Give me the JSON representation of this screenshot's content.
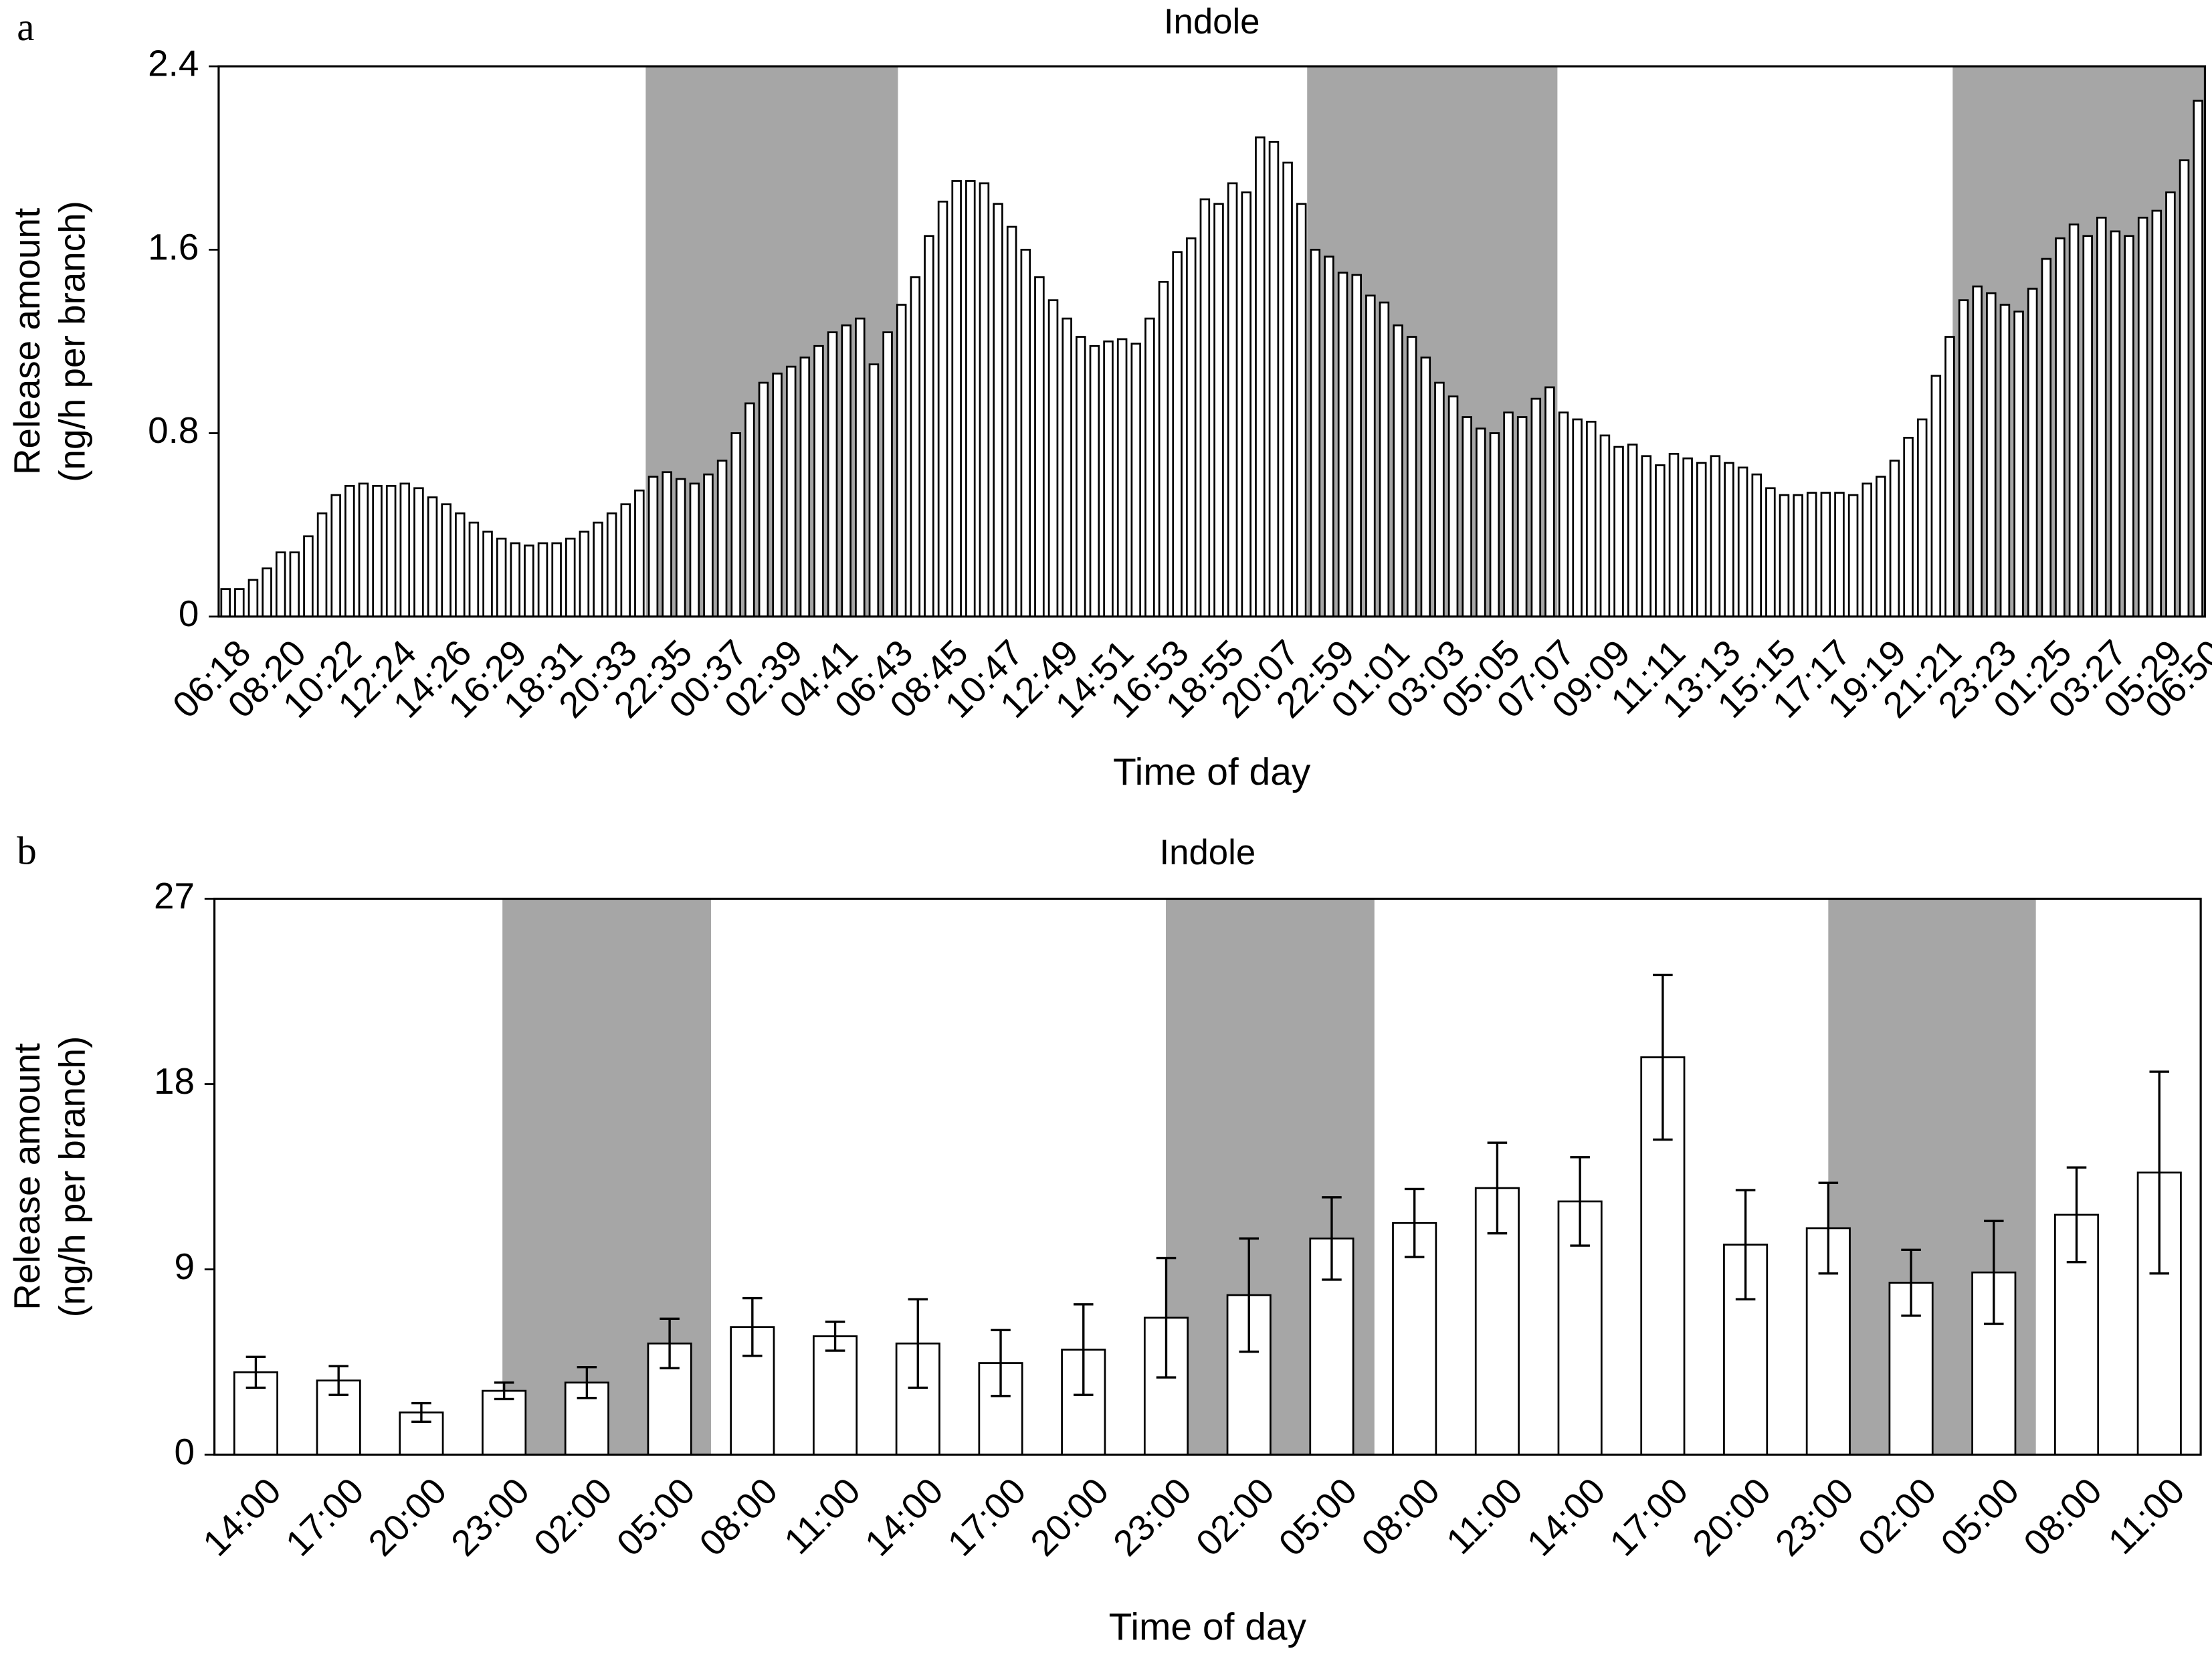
{
  "chart_data": [
    {
      "type": "bar",
      "panel": "a",
      "title": "Indole",
      "y_label": [
        "Release amount",
        "(ng/h per branch)"
      ],
      "x_label": "Time of day",
      "categories": [
        "06:18",
        null,
        null,
        null,
        "08:20",
        null,
        null,
        null,
        "10:22",
        null,
        null,
        null,
        "12:24",
        null,
        null,
        null,
        "14:26",
        null,
        null,
        null,
        "16:29",
        null,
        null,
        null,
        "18:31",
        null,
        null,
        null,
        "20:33",
        null,
        null,
        null,
        "22:35",
        null,
        null,
        null,
        "00:37",
        null,
        null,
        null,
        "02:39",
        null,
        null,
        null,
        "04:41",
        null,
        null,
        null,
        "06:43",
        null,
        null,
        null,
        "08:45",
        null,
        null,
        null,
        "10:47",
        null,
        null,
        null,
        "12:49",
        null,
        null,
        null,
        "14:51",
        null,
        null,
        null,
        "16:53",
        null,
        null,
        null,
        "18:55",
        null,
        null,
        null,
        "20:07",
        null,
        null,
        null,
        "22:59",
        null,
        null,
        null,
        "01:01",
        null,
        null,
        null,
        "03:03",
        null,
        null,
        null,
        "05:05",
        null,
        null,
        null,
        "07:07",
        null,
        null,
        null,
        "09:09",
        null,
        null,
        null,
        "11:11",
        null,
        null,
        null,
        "13:13",
        null,
        null,
        null,
        "15:15",
        null,
        null,
        null,
        "17:17",
        null,
        null,
        null,
        "19:19",
        null,
        null,
        null,
        "21:21",
        null,
        null,
        null,
        "23:23",
        null,
        null,
        null,
        "01:25",
        null,
        null,
        null,
        "03:27",
        null,
        null,
        null,
        "05:29",
        null,
        null,
        "06:50"
      ],
      "values": [
        0.12,
        0.12,
        0.16,
        0.21,
        0.28,
        0.28,
        0.35,
        0.45,
        0.53,
        0.57,
        0.58,
        0.57,
        0.57,
        0.58,
        0.56,
        0.52,
        0.49,
        0.45,
        0.41,
        0.37,
        0.34,
        0.32,
        0.31,
        0.32,
        0.32,
        0.34,
        0.37,
        0.41,
        0.45,
        0.49,
        0.55,
        0.61,
        0.63,
        0.6,
        0.58,
        0.62,
        0.68,
        0.8,
        0.93,
        1.02,
        1.06,
        1.09,
        1.13,
        1.18,
        1.24,
        1.27,
        1.3,
        1.1,
        1.24,
        1.36,
        1.48,
        1.66,
        1.81,
        1.9,
        1.9,
        1.89,
        1.8,
        1.7,
        1.6,
        1.48,
        1.38,
        1.3,
        1.22,
        1.18,
        1.2,
        1.21,
        1.19,
        1.3,
        1.46,
        1.59,
        1.65,
        1.82,
        1.8,
        1.89,
        1.85,
        2.09,
        2.07,
        1.98,
        1.8,
        1.6,
        1.57,
        1.5,
        1.49,
        1.4,
        1.37,
        1.27,
        1.22,
        1.13,
        1.02,
        0.96,
        0.87,
        0.82,
        0.8,
        0.89,
        0.87,
        0.95,
        1.0,
        0.89,
        0.86,
        0.85,
        0.79,
        0.74,
        0.75,
        0.7,
        0.66,
        0.71,
        0.69,
        0.67,
        0.7,
        0.67,
        0.65,
        0.62,
        0.56,
        0.53,
        0.53,
        0.54,
        0.54,
        0.54,
        0.53,
        0.58,
        0.61,
        0.68,
        0.78,
        0.86,
        1.05,
        1.22,
        1.38,
        1.44,
        1.41,
        1.36,
        1.33,
        1.43,
        1.56,
        1.65,
        1.71,
        1.66,
        1.74,
        1.68,
        1.66,
        1.74,
        1.77,
        1.85,
        1.99,
        2.25
      ],
      "color": "#ffffff",
      "ylim": [
        0,
        2.4
      ],
      "yticks": [
        0,
        0.8,
        1.6,
        2.4
      ]
    },
    {
      "type": "bar",
      "panel": "b",
      "title": "Indole",
      "y_label": [
        "Release amount",
        "(ng/h per branch)"
      ],
      "x_label": "Time of day",
      "categories": [
        "14:00",
        "17:00",
        "20:00",
        "23:00",
        "02:00",
        "05:00",
        "08:00",
        "11:00",
        "14:00",
        "17:00",
        "20:00",
        "23:00",
        "02:00",
        "05:00",
        "08:00",
        "11:00",
        "14:00",
        "17:00",
        "20:00",
        "23:00",
        "02:00",
        "05:00",
        "08:00",
        "11:00"
      ],
      "values": [
        4.0,
        3.6,
        2.05,
        3.1,
        3.5,
        5.4,
        6.2,
        5.75,
        5.4,
        4.45,
        5.1,
        6.65,
        7.75,
        10.5,
        11.25,
        12.95,
        12.3,
        19.3,
        10.2,
        11.0,
        8.35,
        8.85,
        11.65,
        13.7
      ],
      "errors": [
        0.75,
        0.7,
        0.45,
        0.4,
        0.75,
        1.2,
        1.4,
        0.7,
        2.15,
        1.6,
        2.2,
        2.9,
        2.75,
        2.0,
        1.65,
        2.2,
        2.15,
        4.0,
        2.65,
        2.2,
        1.6,
        2.5,
        2.3,
        4.9
      ],
      "color": "#ffffff",
      "ylim": [
        0,
        27
      ],
      "yticks": [
        0,
        9,
        18,
        27
      ]
    }
  ]
}
